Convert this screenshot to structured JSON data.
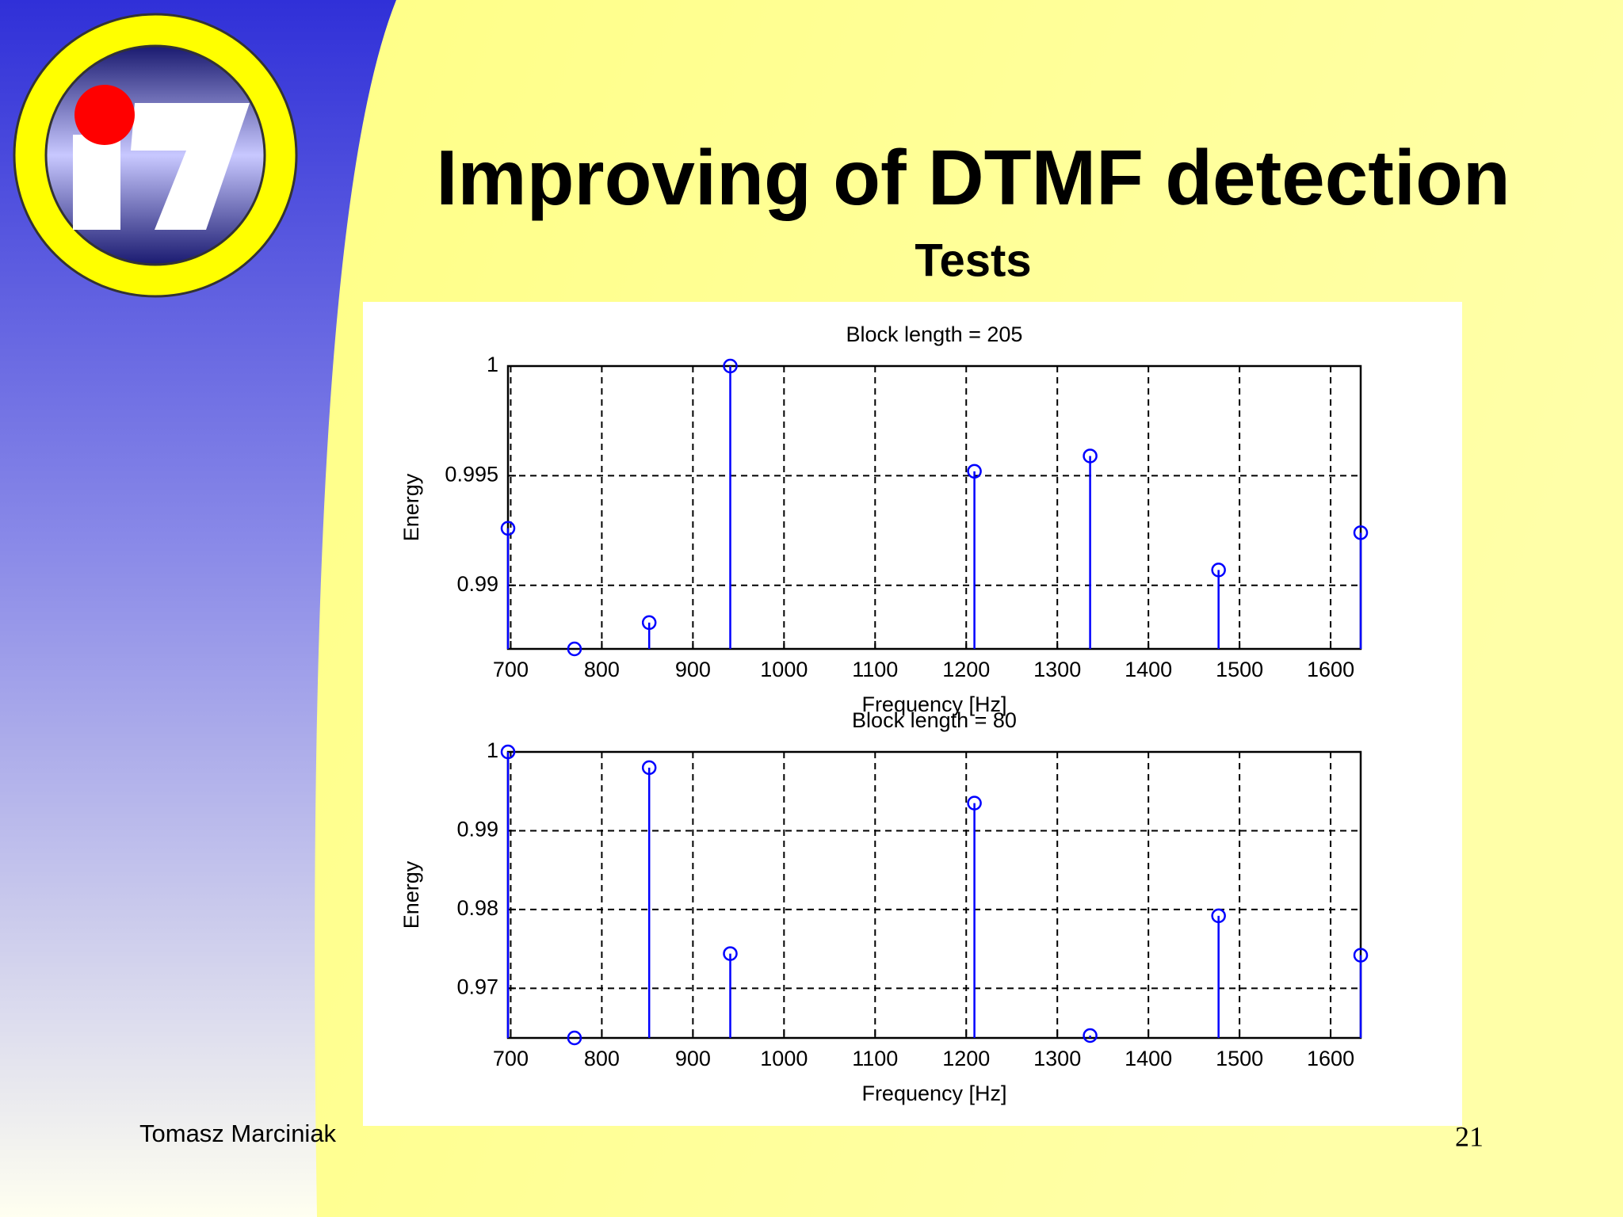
{
  "title": "Improving of DTMF detection",
  "subtitle": "Tests",
  "author": "Tomasz Marciniak",
  "page": "21",
  "chart_data": [
    {
      "type": "stem",
      "title": "Block length = 205",
      "xlabel": "Frequency [Hz]",
      "ylabel": "Energy",
      "color": "#0000ff",
      "grid": true,
      "x": [
        697,
        770,
        852,
        941,
        1209,
        1336,
        1477,
        1633
      ],
      "values": [
        0.9926,
        0.9871,
        0.9883,
        1.0,
        0.9952,
        0.9959,
        0.9907,
        0.9924
      ],
      "xlim": [
        697,
        1633
      ],
      "xticks": [
        700,
        800,
        900,
        1000,
        1100,
        1200,
        1300,
        1400,
        1500,
        1600
      ],
      "ylim": [
        0.9871,
        1
      ],
      "yticks": [
        0.99,
        0.995,
        1
      ]
    },
    {
      "type": "stem",
      "title": "Block length = 80",
      "xlabel": "Frequency [Hz]",
      "ylabel": "Energy",
      "color": "#0000ff",
      "grid": true,
      "x": [
        697,
        770,
        852,
        941,
        1209,
        1336,
        1477,
        1633
      ],
      "values": [
        1.0,
        0.9637,
        0.998,
        0.9744,
        0.9935,
        0.964,
        0.9792,
        0.9742
      ],
      "xlim": [
        697,
        1633
      ],
      "xticks": [
        700,
        800,
        900,
        1000,
        1100,
        1200,
        1300,
        1400,
        1500,
        1600
      ],
      "ylim": [
        0.9637,
        1
      ],
      "yticks": [
        0.97,
        0.98,
        0.99,
        1
      ]
    }
  ]
}
